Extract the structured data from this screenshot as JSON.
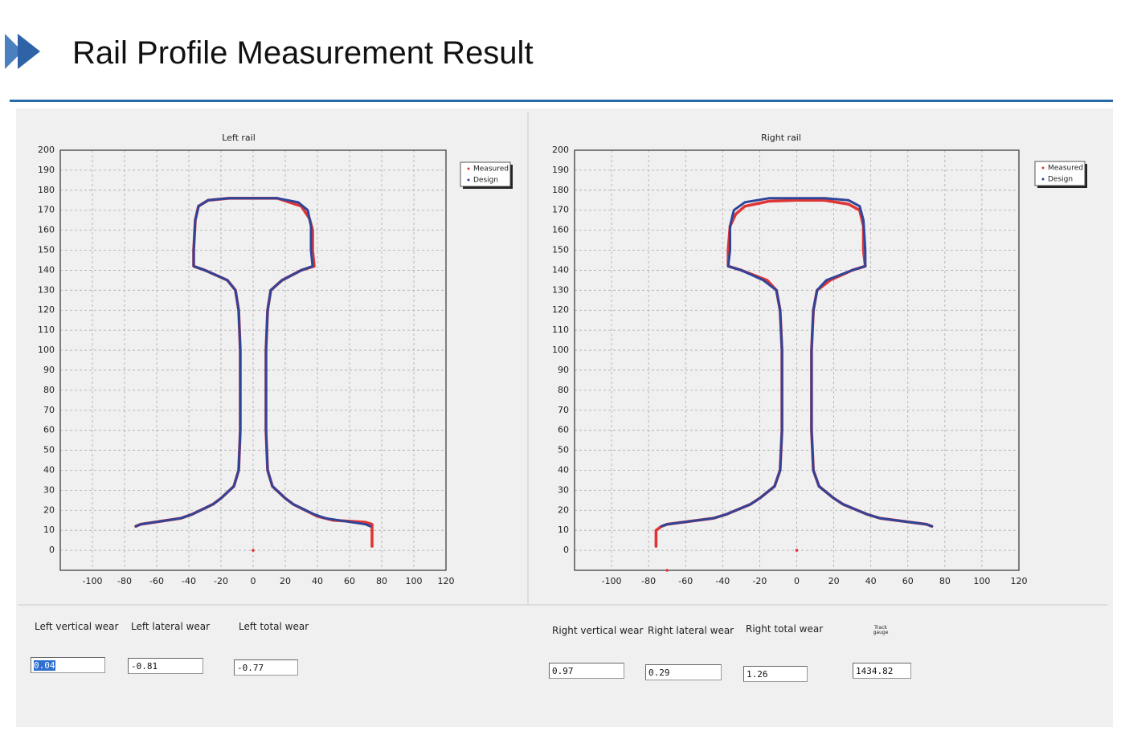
{
  "header": {
    "title": "Rail Profile Measurement Result"
  },
  "chart_data": [
    {
      "type": "line",
      "title": "Left rail",
      "xlim": [
        -120,
        120
      ],
      "ylim": [
        -10,
        200
      ],
      "xticks": [
        -100,
        -80,
        -60,
        -40,
        -20,
        0,
        20,
        40,
        60,
        80,
        100,
        120
      ],
      "yticks": [
        0,
        10,
        20,
        30,
        40,
        50,
        60,
        70,
        80,
        90,
        100,
        110,
        120,
        130,
        140,
        150,
        160,
        170,
        180,
        190,
        200
      ],
      "grid": true,
      "legend": "upper right",
      "series": [
        {
          "name": "Measured",
          "color": "#e03535",
          "x": [
            -73,
            -70,
            -45,
            -38,
            -25,
            -20,
            -12,
            -9,
            -8,
            -8,
            -9,
            -11,
            -16,
            -30,
            -37,
            -37,
            -36,
            -34,
            -28,
            -15,
            0,
            15,
            30,
            35,
            37,
            37,
            38,
            30,
            18,
            11,
            9,
            8,
            8,
            9,
            12,
            20,
            25,
            40,
            50,
            70,
            74,
            74,
            null,
            0
          ],
          "values": [
            12,
            13,
            16,
            18,
            23,
            26,
            32,
            40,
            60,
            100,
            120,
            130,
            135,
            140,
            142,
            150,
            165,
            172,
            175,
            176,
            176,
            176,
            172,
            166,
            160,
            150,
            142,
            140,
            135,
            130,
            120,
            100,
            60,
            40,
            32,
            26,
            23,
            17,
            15,
            14,
            13,
            2,
            null,
            0
          ]
        },
        {
          "name": "Design",
          "color": "#2e459a",
          "x": [
            -73,
            -70,
            -45,
            -38,
            -25,
            -20,
            -12,
            -9,
            -8,
            -8,
            -9,
            -11,
            -16,
            -30,
            -37,
            -37,
            -36,
            -34,
            -28,
            -15,
            0,
            15,
            28,
            34,
            36,
            36,
            37,
            30,
            18,
            11,
            9,
            8,
            8,
            9,
            12,
            20,
            25,
            38,
            45,
            70,
            73
          ],
          "values": [
            12,
            13,
            16,
            18,
            23,
            26,
            32,
            40,
            60,
            100,
            120,
            130,
            135,
            140,
            142,
            150,
            165,
            172,
            175,
            176,
            176,
            176,
            174,
            170,
            162,
            150,
            142,
            140,
            135,
            130,
            120,
            100,
            60,
            40,
            32,
            26,
            23,
            18,
            16,
            13,
            12
          ]
        }
      ]
    },
    {
      "type": "line",
      "title": "Right rail",
      "xlim": [
        -120,
        120
      ],
      "ylim": [
        -10,
        200
      ],
      "xticks": [
        -100,
        -80,
        -60,
        -40,
        -20,
        0,
        20,
        40,
        60,
        80,
        100,
        120
      ],
      "yticks": [
        0,
        10,
        20,
        30,
        40,
        50,
        60,
        70,
        80,
        90,
        100,
        110,
        120,
        130,
        140,
        150,
        160,
        170,
        180,
        190,
        200
      ],
      "grid": true,
      "legend": "upper right",
      "series": [
        {
          "name": "Measured",
          "color": "#e03535",
          "x": [
            -76,
            -76,
            -73,
            -70,
            -45,
            -38,
            -25,
            -20,
            -12,
            -9,
            -8,
            -8,
            -9,
            -11,
            -16,
            -30,
            -37,
            -37,
            -36,
            -33,
            -28,
            -15,
            0,
            15,
            28,
            34,
            36,
            36,
            37,
            30,
            18,
            11,
            9,
            8,
            8,
            9,
            12,
            20,
            25,
            38,
            45,
            70,
            73,
            null,
            0,
            null,
            -70
          ],
          "values": [
            2,
            10,
            12,
            13,
            16,
            18,
            23,
            26,
            32,
            40,
            60,
            100,
            120,
            130,
            135,
            140,
            142,
            150,
            162,
            168,
            172,
            174.5,
            175,
            175,
            173,
            170,
            162,
            150,
            142,
            140,
            135,
            130,
            120,
            100,
            60,
            40,
            32,
            26,
            23,
            18,
            16,
            13,
            12,
            null,
            0,
            null,
            -10
          ]
        },
        {
          "name": "Design",
          "color": "#2e459a",
          "x": [
            73,
            70,
            45,
            38,
            25,
            20,
            12,
            9,
            8,
            8,
            9,
            11,
            16,
            30,
            37,
            37,
            36,
            34,
            28,
            15,
            0,
            -15,
            -28,
            -34,
            -36,
            -36,
            -37,
            -30,
            -18,
            -11,
            -9,
            -8,
            -8,
            -9,
            -12,
            -20,
            -25,
            -38,
            -45,
            -70,
            -73
          ],
          "values": [
            12,
            13,
            16,
            18,
            23,
            26,
            32,
            40,
            60,
            100,
            120,
            130,
            135,
            140,
            142,
            150,
            165,
            172,
            175,
            176,
            176,
            176,
            174,
            170,
            162,
            150,
            142,
            140,
            135,
            130,
            120,
            100,
            60,
            40,
            32,
            26,
            23,
            18,
            16,
            13,
            12
          ]
        }
      ]
    }
  ],
  "fields": [
    {
      "label": "Left vertical wear",
      "value": "0.04"
    },
    {
      "label": "Left lateral wear",
      "value": "-0.81"
    },
    {
      "label": "Left total wear",
      "value": "-0.77"
    },
    {
      "label": "Right vertical wear",
      "value": "0.97"
    },
    {
      "label": "Right lateral wear",
      "value": "0.29"
    },
    {
      "label": "Right total wear",
      "value": "1.26"
    },
    {
      "label": "Track gauge",
      "value": "1434.82"
    }
  ]
}
